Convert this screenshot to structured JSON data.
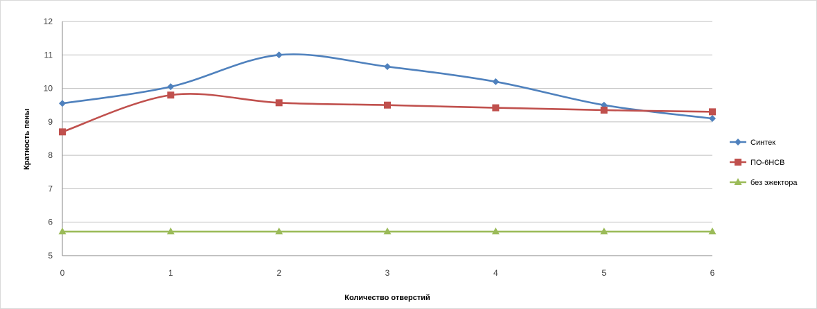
{
  "chart_data": {
    "type": "line",
    "title": "",
    "xlabel": "Количество отверстий",
    "ylabel": "Кратность пены",
    "x": [
      0,
      1,
      2,
      3,
      4,
      5,
      6
    ],
    "xlim": [
      0,
      6
    ],
    "ylim": [
      5,
      12
    ],
    "yticks": [
      5,
      6,
      7,
      8,
      9,
      10,
      11,
      12
    ],
    "grid": true,
    "smooth": true,
    "legend_position": "right",
    "series": [
      {
        "name": "Синтек",
        "color": "#4f81bd",
        "marker": "diamond",
        "values": [
          9.55,
          10.05,
          11.0,
          10.65,
          10.2,
          9.5,
          9.1
        ]
      },
      {
        "name": "ПО-6НСВ",
        "color": "#c0504d",
        "marker": "square",
        "values": [
          8.7,
          9.8,
          9.57,
          9.5,
          9.42,
          9.35,
          9.3
        ]
      },
      {
        "name": "без эжектора",
        "color": "#9bbb59",
        "marker": "triangle",
        "values": [
          5.72,
          5.72,
          5.72,
          5.72,
          5.72,
          5.72,
          5.72
        ]
      }
    ]
  }
}
